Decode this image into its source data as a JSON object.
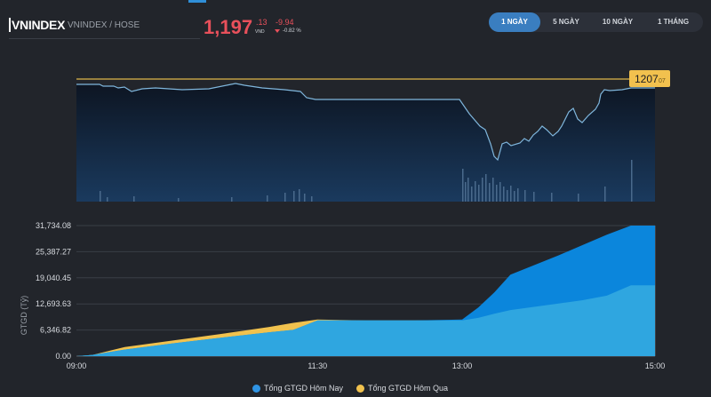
{
  "header": {
    "index_name": "VNINDEX",
    "index_sub": "VNINDEX / HOSE",
    "price_int": "1,197",
    "price_dec": ".13",
    "price_unit": "VND",
    "change": "-9.94",
    "change_pct": "-0.82 %"
  },
  "range_tabs": [
    {
      "label": "1 NGÀY",
      "active": true
    },
    {
      "label": "5 NGÀY",
      "active": false
    },
    {
      "label": "10 NGÀY",
      "active": false
    },
    {
      "label": "1 THÁNG",
      "active": false
    }
  ],
  "colors": {
    "price_line": "#7fb6dc",
    "ref_line": "#e0b84a",
    "today_fill": "#2fa6e0",
    "today_top": "#0b86dc",
    "yesterday_fill": "#f1c24e",
    "negative": "#e8505b"
  },
  "chart_data": [
    {
      "type": "line",
      "reference_label": "1207",
      "reference_label_suffix": "07",
      "reference_value": 1207.07,
      "note_volume_bars": true
    },
    {
      "type": "area",
      "ylabel": "GTGD (Tỷ)",
      "yticks": [
        "31,734.08",
        "25,387.27",
        "19,040.45",
        "12,693.63",
        "6,346.82",
        "0.00"
      ],
      "ytick_values": [
        31734.08,
        25387.27,
        19040.45,
        12693.63,
        6346.82,
        0
      ],
      "ylim": [
        0,
        31734.08
      ],
      "xticks": [
        "09:00",
        "11:30",
        "13:00",
        "15:00"
      ],
      "x": [
        "09:00",
        "09:10",
        "09:30",
        "10:00",
        "10:30",
        "11:00",
        "11:15",
        "11:30",
        "12:00",
        "12:30",
        "13:00",
        "13:10",
        "13:20",
        "13:30",
        "14:00",
        "14:15",
        "14:30",
        "14:45",
        "15:00"
      ],
      "series": [
        {
          "name": "Tổng GTGD Hôm Nay",
          "values": [
            0,
            300,
            1600,
            3100,
            4500,
            5800,
            6400,
            8700,
            8700,
            8700,
            8700,
            9300,
            10300,
            11200,
            12800,
            13600,
            14700,
            17200,
            17200
          ]
        },
        {
          "name": "Tổng GTGD Hôm Qua",
          "values": [
            0,
            300,
            1700,
            3300,
            4900,
            6600,
            7600,
            8900,
            8900,
            8900,
            8900,
            11800,
            15500,
            19800,
            24500,
            27000,
            29500,
            31734,
            31734
          ]
        }
      ],
      "legend_position": "bottom"
    }
  ],
  "legend": {
    "today": "Tổng GTGD Hôm Nay",
    "yesterday": "Tổng GTGD Hôm Qua"
  }
}
